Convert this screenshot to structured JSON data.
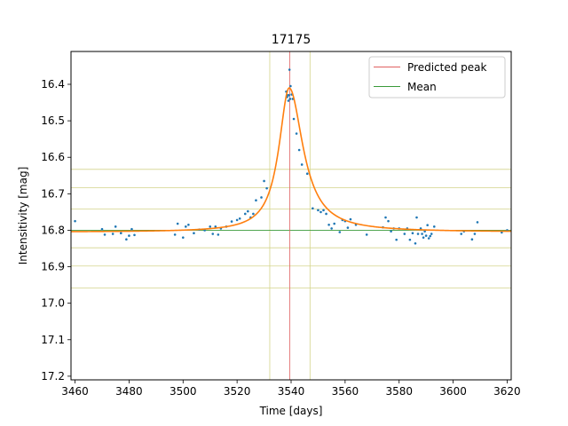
{
  "chart_data": {
    "type": "scatter",
    "title": "17175",
    "xlabel": "Time [days]",
    "ylabel": "Intensitivity [mag]",
    "xlim": [
      3458.5,
      3621.5
    ],
    "ylim": [
      17.21,
      16.31
    ],
    "y_inverted": true,
    "xticks": [
      3460,
      3480,
      3500,
      3520,
      3540,
      3560,
      3580,
      3600,
      3620
    ],
    "yticks": [
      16.4,
      16.5,
      16.6,
      16.7,
      16.8,
      16.9,
      17.0,
      17.1,
      17.2
    ],
    "xtick_labels": [
      "3460",
      "3480",
      "3500",
      "3520",
      "3540",
      "3560",
      "3580",
      "3600",
      "3620"
    ],
    "ytick_labels": [
      "16.4",
      "16.5",
      "16.6",
      "16.7",
      "16.8",
      "16.9",
      "17.0",
      "17.1",
      "17.2"
    ],
    "legend_position": "top-right",
    "legend": [
      {
        "label": "Predicted peak",
        "color": "#e06060"
      },
      {
        "label": "Mean",
        "color": "#3a9a3a"
      }
    ],
    "predicted_peak_x": 3539.5,
    "mean_y": 16.8,
    "band_vlines_x": [
      3532.1,
      3547.0
    ],
    "band_hlines_y": [
      16.633,
      16.683,
      16.742,
      16.848,
      16.898,
      16.958
    ],
    "fit": {
      "baseline": 16.805,
      "peak_mag": 16.41,
      "peak_x": 3539.3,
      "rise_width": 4.6,
      "decay_width": 6.2
    },
    "points": [
      [
        3460,
        16.775
      ],
      [
        3470,
        16.797
      ],
      [
        3471,
        16.812
      ],
      [
        3474,
        16.81
      ],
      [
        3475,
        16.79
      ],
      [
        3477,
        16.808
      ],
      [
        3479,
        16.825
      ],
      [
        3480,
        16.815
      ],
      [
        3481,
        16.797
      ],
      [
        3482,
        16.813
      ],
      [
        3497,
        16.812
      ],
      [
        3498,
        16.782
      ],
      [
        3500,
        16.82
      ],
      [
        3501,
        16.79
      ],
      [
        3502,
        16.785
      ],
      [
        3504,
        16.808
      ],
      [
        3506,
        16.798
      ],
      [
        3508,
        16.8
      ],
      [
        3510,
        16.79
      ],
      [
        3511,
        16.81
      ],
      [
        3512,
        16.79
      ],
      [
        3513,
        16.812
      ],
      [
        3514,
        16.795
      ],
      [
        3516,
        16.79
      ],
      [
        3518,
        16.776
      ],
      [
        3520,
        16.772
      ],
      [
        3521,
        16.768
      ],
      [
        3523,
        16.755
      ],
      [
        3524,
        16.748
      ],
      [
        3525,
        16.765
      ],
      [
        3526,
        16.755
      ],
      [
        3527,
        16.718
      ],
      [
        3529,
        16.71
      ],
      [
        3530,
        16.665
      ],
      [
        3531,
        16.685
      ],
      [
        3538.2,
        16.42
      ],
      [
        3538.5,
        16.435
      ],
      [
        3538.8,
        16.43
      ],
      [
        3539.0,
        16.445
      ],
      [
        3539.2,
        16.43
      ],
      [
        3539.4,
        16.36
      ],
      [
        3539.6,
        16.44
      ],
      [
        3539.8,
        16.405
      ],
      [
        3540.2,
        16.428
      ],
      [
        3540.6,
        16.44
      ],
      [
        3541,
        16.495
      ],
      [
        3542,
        16.535
      ],
      [
        3543,
        16.58
      ],
      [
        3544,
        16.62
      ],
      [
        3546,
        16.645
      ],
      [
        3548,
        16.74
      ],
      [
        3550,
        16.745
      ],
      [
        3551,
        16.75
      ],
      [
        3552,
        16.745
      ],
      [
        3553,
        16.755
      ],
      [
        3554,
        16.785
      ],
      [
        3555,
        16.795
      ],
      [
        3556,
        16.782
      ],
      [
        3558,
        16.805
      ],
      [
        3559,
        16.772
      ],
      [
        3560,
        16.775
      ],
      [
        3561,
        16.793
      ],
      [
        3562,
        16.77
      ],
      [
        3564,
        16.785
      ],
      [
        3568,
        16.812
      ],
      [
        3574,
        16.792
      ],
      [
        3575,
        16.765
      ],
      [
        3576,
        16.775
      ],
      [
        3577,
        16.803
      ],
      [
        3578,
        16.795
      ],
      [
        3579,
        16.826
      ],
      [
        3580,
        16.795
      ],
      [
        3582,
        16.81
      ],
      [
        3583,
        16.795
      ],
      [
        3584,
        16.826
      ],
      [
        3585,
        16.808
      ],
      [
        3586,
        16.836
      ],
      [
        3586.5,
        16.765
      ],
      [
        3587,
        16.81
      ],
      [
        3588,
        16.795
      ],
      [
        3588.5,
        16.81
      ],
      [
        3589,
        16.82
      ],
      [
        3589.5,
        16.803
      ],
      [
        3590,
        16.815
      ],
      [
        3590.5,
        16.786
      ],
      [
        3591,
        16.822
      ],
      [
        3591.5,
        16.816
      ],
      [
        3592,
        16.81
      ],
      [
        3593,
        16.79
      ],
      [
        3603,
        16.81
      ],
      [
        3604,
        16.803
      ],
      [
        3607,
        16.825
      ],
      [
        3608,
        16.81
      ],
      [
        3609,
        16.778
      ],
      [
        3618,
        16.806
      ],
      [
        3620,
        16.8
      ]
    ]
  }
}
